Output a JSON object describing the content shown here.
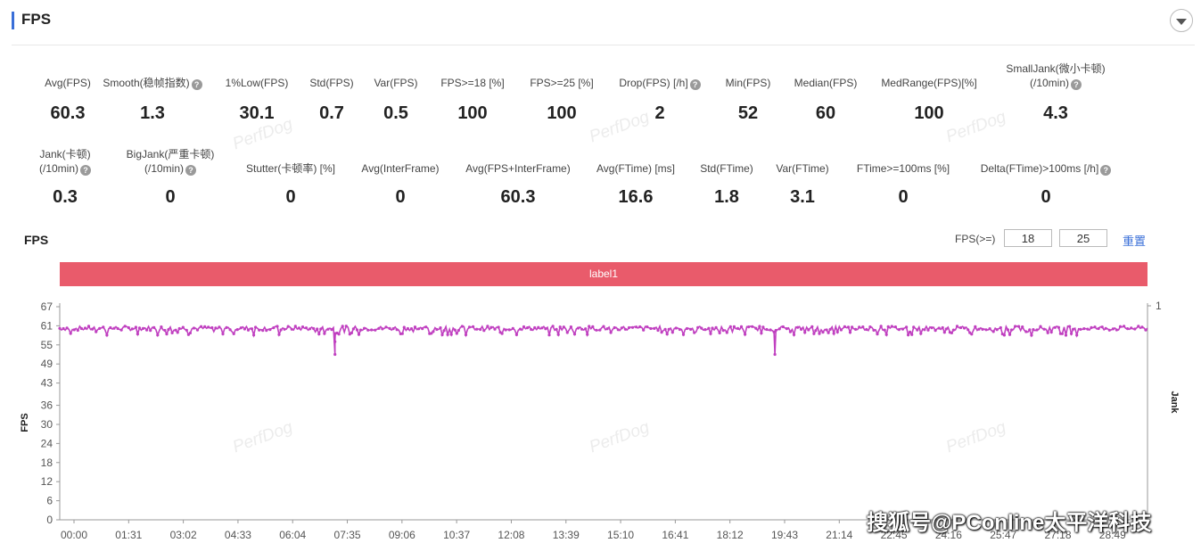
{
  "header": {
    "title": "FPS",
    "toggle_icon": "chevron-down-icon"
  },
  "metrics_row1": [
    {
      "label": "Avg(FPS)",
      "value": "60.3",
      "help": false
    },
    {
      "label": "Smooth(稳帧指数)",
      "value": "1.3",
      "help": true
    },
    {
      "label": "1%Low(FPS)",
      "value": "30.1",
      "help": false
    },
    {
      "label": "Std(FPS)",
      "value": "0.7",
      "help": false
    },
    {
      "label": "Var(FPS)",
      "value": "0.5",
      "help": false
    },
    {
      "label": "FPS>=18 [%]",
      "value": "100",
      "help": false
    },
    {
      "label": "FPS>=25 [%]",
      "value": "100",
      "help": false
    },
    {
      "label": "Drop(FPS) [/h]",
      "value": "2",
      "help": true
    },
    {
      "label": "Min(FPS)",
      "value": "52",
      "help": false
    },
    {
      "label": "Median(FPS)",
      "value": "60",
      "help": false
    },
    {
      "label": "MedRange(FPS)[%]",
      "value": "100",
      "help": false
    },
    {
      "label": "SmallJank(微小卡顿)",
      "label2": "(/10min)",
      "value": "4.3",
      "help": true
    }
  ],
  "metrics_row2": [
    {
      "label": "Jank(卡顿)",
      "label2": "(/10min)",
      "value": "0.3",
      "help": true
    },
    {
      "label": "BigJank(严重卡顿)",
      "label2": "(/10min)",
      "value": "0",
      "help": true
    },
    {
      "label": "Stutter(卡顿率) [%]",
      "value": "0",
      "help": false
    },
    {
      "label": "Avg(InterFrame)",
      "value": "0",
      "help": false
    },
    {
      "label": "Avg(FPS+InterFrame)",
      "value": "60.3",
      "help": false
    },
    {
      "label": "Avg(FTime) [ms]",
      "value": "16.6",
      "help": false
    },
    {
      "label": "Std(FTime)",
      "value": "1.8",
      "help": false
    },
    {
      "label": "Var(FTime)",
      "value": "3.1",
      "help": false
    },
    {
      "label": "FTime>=100ms [%]",
      "value": "0",
      "help": false
    },
    {
      "label": "Delta(FTime)>100ms [/h]",
      "value": "0",
      "help": true
    }
  ],
  "watermark": "PerfDog",
  "chart_section": {
    "title": "FPS",
    "threshold_label": "FPS(>=)",
    "threshold1": "18",
    "threshold2": "25",
    "reset_label": "重置",
    "label_bar": "label1"
  },
  "chart_data": {
    "type": "line",
    "ylabel": "FPS",
    "y2label": "Jank",
    "y_ticks": [
      0,
      6,
      12,
      18,
      24,
      30,
      36,
      43,
      49,
      55,
      61,
      67
    ],
    "ylim": [
      0,
      67
    ],
    "y2_ticks": [
      1
    ],
    "x_ticks": [
      "00:00",
      "01:31",
      "03:02",
      "04:33",
      "06:04",
      "07:35",
      "09:06",
      "10:37",
      "12:08",
      "13:39",
      "15:10",
      "16:41",
      "18:12",
      "19:43",
      "21:14",
      "22:45",
      "24:16",
      "25:47",
      "27:18",
      "28:49"
    ],
    "x_range_seconds": [
      0,
      1800
    ],
    "series": [
      {
        "color": "#c040c0",
        "baseline": 60,
        "noise_range": [
          58,
          61
        ],
        "dips": [
          {
            "time": "07:35",
            "value": 52
          },
          {
            "time": "07:35",
            "value": 56
          },
          {
            "time": "19:43",
            "value": 52
          }
        ]
      }
    ]
  },
  "credit": "搜狐号@PConline太平洋科技"
}
